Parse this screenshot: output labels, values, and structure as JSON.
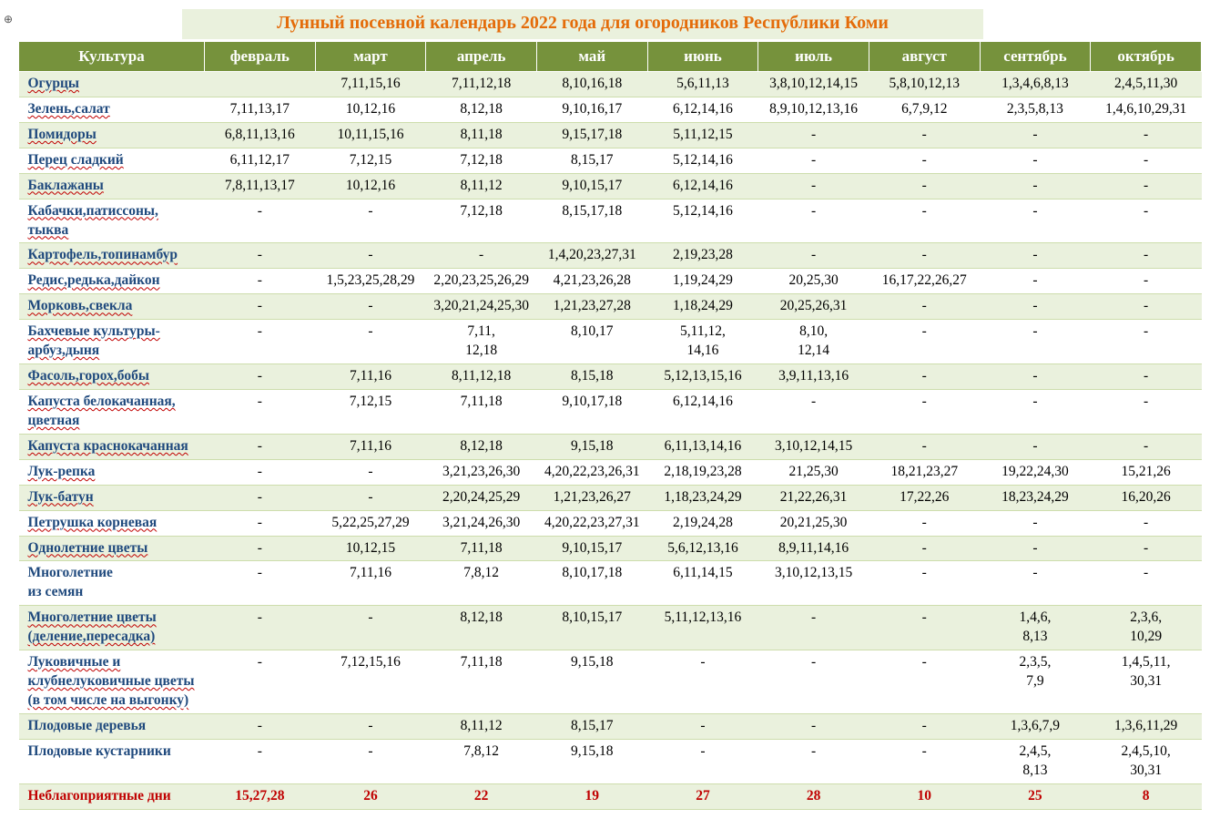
{
  "title": "Лунный посевной календарь 2022 года для огородников Республики Коми",
  "anchor_glyph": "⊕",
  "headers": [
    "Культура",
    "февраль",
    "март",
    "апрель",
    "май",
    "июнь",
    "июль",
    "август",
    "сентябрь",
    "октябрь"
  ],
  "rows": [
    {
      "stripe": "odd",
      "underline": true,
      "cells": [
        "Огурцы",
        "",
        "7,11,15,16",
        "7,11,12,18",
        "8,10,16,18",
        "5,6,11,13",
        "3,8,10,12,14,15",
        "5,8,10,12,13",
        "1,3,4,6,8,13",
        "2,4,5,11,30"
      ]
    },
    {
      "stripe": "even",
      "underline": true,
      "cells": [
        "Зелень,салат",
        "7,11,13,17",
        "10,12,16",
        "8,12,18",
        "9,10,16,17",
        "6,12,14,16",
        "8,9,10,12,13,16",
        "6,7,9,12",
        "2,3,5,8,13",
        "1,4,6,10,29,31"
      ]
    },
    {
      "stripe": "odd",
      "underline": true,
      "cells": [
        "Помидоры",
        "6,8,11,13,16",
        "10,11,15,16",
        "8,11,18",
        "9,15,17,18",
        "5,11,12,15",
        "-",
        "-",
        "-",
        "-"
      ]
    },
    {
      "stripe": "even",
      "underline": true,
      "cells": [
        "Перец сладкий",
        "6,11,12,17",
        "7,12,15",
        "7,12,18",
        "8,15,17",
        "5,12,14,16",
        "-",
        "-",
        "-",
        "-"
      ]
    },
    {
      "stripe": "odd",
      "underline": true,
      "cells": [
        "Баклажаны",
        "7,8,11,13,17",
        "10,12,16",
        "8,11,12",
        "9,10,15,17",
        "6,12,14,16",
        "-",
        "-",
        "-",
        "-"
      ]
    },
    {
      "stripe": "even",
      "underline": true,
      "cells": [
        "Кабачки,патиссоны,\nтыква",
        "-",
        "-",
        "7,12,18",
        "8,15,17,18",
        "5,12,14,16",
        "-",
        "-",
        "-",
        "-"
      ]
    },
    {
      "stripe": "odd",
      "underline": true,
      "cells": [
        "Картофель,топинамбур",
        "-",
        "-",
        "-",
        "1,4,20,23,27,31",
        "2,19,23,28",
        "-",
        "-",
        "-",
        "-"
      ]
    },
    {
      "stripe": "even",
      "underline": true,
      "cells": [
        "Редис,редька,дайкон",
        "-",
        "1,5,23,25,28,29",
        "2,20,23,25,26,29",
        "4,21,23,26,28",
        "1,19,24,29",
        "20,25,30",
        "16,17,22,26,27",
        "-",
        "-"
      ]
    },
    {
      "stripe": "odd",
      "underline": true,
      "cells": [
        "Морковь,свекла",
        "-",
        "-",
        "3,20,21,24,25,30",
        "1,21,23,27,28",
        "1,18,24,29",
        "20,25,26,31",
        "-",
        "-",
        "-"
      ]
    },
    {
      "stripe": "even",
      "underline": true,
      "cells": [
        "Бахчевые культуры-арбуз,дыня",
        "-",
        "-",
        "7,11,\n12,18",
        "8,10,17",
        "5,11,12,\n14,16",
        "8,10,\n12,14",
        "-",
        "-",
        "-"
      ]
    },
    {
      "stripe": "odd",
      "underline": true,
      "cells": [
        "Фасоль,горох,бобы",
        "-",
        "7,11,16",
        "8,11,12,18",
        "8,15,18",
        "5,12,13,15,16",
        "3,9,11,13,16",
        "-",
        "-",
        "-"
      ]
    },
    {
      "stripe": "even",
      "underline": true,
      "cells": [
        "Капуста белокачанная,\nцветная",
        "-",
        "7,12,15",
        "7,11,18",
        "9,10,17,18",
        "6,12,14,16",
        "-",
        "-",
        "-",
        "-"
      ]
    },
    {
      "stripe": "odd",
      "underline": true,
      "cells": [
        "Капуста краснокачанная",
        "-",
        "7,11,16",
        "8,12,18",
        "9,15,18",
        "6,11,13,14,16",
        "3,10,12,14,15",
        "-",
        "-",
        "-"
      ]
    },
    {
      "stripe": "even",
      "underline": true,
      "cells": [
        "Лук-репка",
        "-",
        "-",
        "3,21,23,26,30",
        "4,20,22,23,26,31",
        "2,18,19,23,28",
        "21,25,30",
        "18,21,23,27",
        "19,22,24,30",
        "15,21,26"
      ]
    },
    {
      "stripe": "odd",
      "underline": true,
      "cells": [
        "Лук-батун",
        "-",
        "-",
        "2,20,24,25,29",
        "1,21,23,26,27",
        "1,18,23,24,29",
        "21,22,26,31",
        "17,22,26",
        "18,23,24,29",
        "16,20,26"
      ]
    },
    {
      "stripe": "even",
      "underline": true,
      "cells": [
        "Петрушка корневая",
        "-",
        "5,22,25,27,29",
        "3,21,24,26,30",
        "4,20,22,23,27,31",
        "2,19,24,28",
        "20,21,25,30",
        "-",
        "-",
        "-"
      ]
    },
    {
      "stripe": "odd",
      "underline": true,
      "cells": [
        "Однолетние цветы",
        "-",
        "10,12,15",
        "7,11,18",
        "9,10,15,17",
        "5,6,12,13,16",
        "8,9,11,14,16",
        "-",
        "-",
        "-"
      ]
    },
    {
      "stripe": "even",
      "underline": false,
      "cells": [
        "Многолетние\n из семян",
        "-",
        "7,11,16",
        "7,8,12",
        "8,10,17,18",
        "6,11,14,15",
        "3,10,12,13,15",
        "-",
        "-",
        "-"
      ]
    },
    {
      "stripe": "odd",
      "underline": true,
      "cells": [
        "Многолетние цветы (деление,пересадка)",
        "-",
        "-",
        "8,12,18",
        "8,10,15,17",
        "5,11,12,13,16",
        "-",
        "-",
        "1,4,6,\n8,13",
        "2,3,6,\n10,29"
      ]
    },
    {
      "stripe": "even",
      "underline": true,
      "cells": [
        "Луковичные и клубнелуковичные цветы (в том числе на выгонку)",
        "-",
        "7,12,15,16",
        "7,11,18",
        "9,15,18",
        "-",
        "-",
        "-",
        "2,3,5,\n7,9",
        "1,4,5,11,\n30,31"
      ]
    },
    {
      "stripe": "odd",
      "underline": false,
      "cells": [
        "Плодовые деревья",
        "-",
        "-",
        "8,11,12",
        "8,15,17",
        "-",
        "-",
        "-",
        "1,3,6,7,9",
        "1,3,6,11,29"
      ]
    },
    {
      "stripe": "even",
      "underline": false,
      "cells": [
        "Плодовые кустарники",
        "-",
        "-",
        "7,8,12",
        "9,15,18",
        "-",
        "-",
        "-",
        "2,4,5,\n8,13",
        "2,4,5,10,\n30,31"
      ]
    },
    {
      "stripe": "bad",
      "underline": false,
      "cells": [
        "Неблагоприятные дни",
        "15,27,28",
        "26",
        "22",
        "19",
        "27",
        "28",
        "10",
        "25",
        "8"
      ]
    }
  ]
}
